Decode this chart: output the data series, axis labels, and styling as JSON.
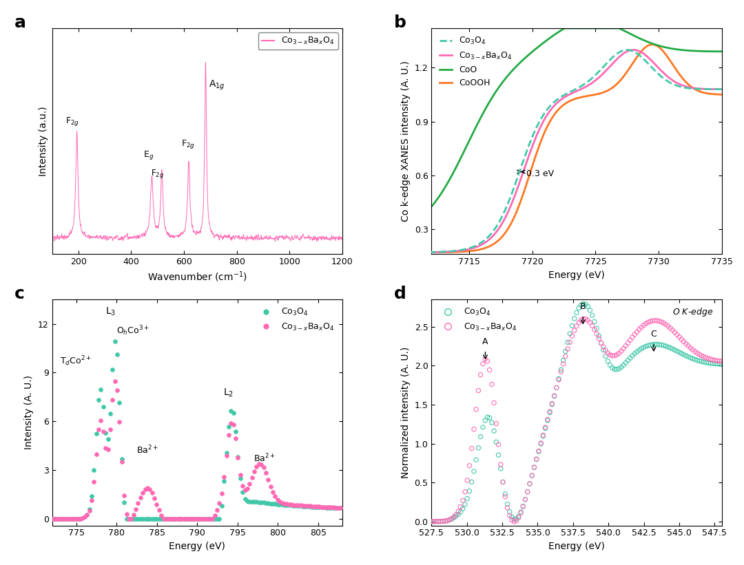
{
  "panel_labels": [
    "a",
    "b",
    "c",
    "d"
  ],
  "panel_label_fontsize": 18,
  "panel_label_fontweight": "bold",
  "panel_a": {
    "xlabel": "Wavenumber (cm$^{-1}$)",
    "ylabel": "Intensity (a.u.)",
    "xlim": [
      100,
      1200
    ],
    "color": "#FF69B4",
    "legend_label": "Co$_{3-x}$Ba$_x$O$_4$"
  },
  "panel_b": {
    "xlabel": "Energy (eV)",
    "ylabel": "Co k-edge XANES intensity (A. U.)",
    "xlim": [
      7712,
      7735
    ],
    "ylim": [
      0.16,
      1.42
    ],
    "yticks": [
      0.3,
      0.6,
      0.9,
      1.2
    ],
    "colors": {
      "Co3O4": "#40C8A8",
      "Co3xBaxO4": "#FF69B4",
      "CoO": "#22AA44",
      "CoOOH": "#FF7722"
    },
    "legend_labels": [
      "Co$_3$O$_4$",
      "Co$_{3-x}$Ba$_x$O$_4$",
      "CoO",
      "CoOOH"
    ],
    "annotation": "0.3 eV"
  },
  "panel_c": {
    "xlabel": "Energy (eV)",
    "ylabel": "Intensity (A. U.)",
    "xlim": [
      772,
      808
    ],
    "ylim": [
      -0.4,
      13.5
    ],
    "yticks": [
      0,
      3,
      6,
      9,
      12
    ],
    "colors": {
      "Co3O4": "#40C8A8",
      "Co3xBaxO4": "#FF69B4"
    },
    "legend_labels": [
      "Co$_3$O$_4$",
      "Co$_{3-x}$Ba$_x$O$_4$"
    ]
  },
  "panel_d": {
    "xlabel": "Energy (eV)",
    "ylabel": "Normalized intensity (A. U.)",
    "xlim": [
      527.5,
      548
    ],
    "ylim": [
      -0.05,
      2.85
    ],
    "yticks": [
      0.0,
      0.5,
      1.0,
      1.5,
      2.0,
      2.5
    ],
    "colors": {
      "Co3O4": "#40C8A8",
      "Co3xBaxO4": "#FF69B4"
    },
    "legend_labels": [
      "Co$_3$O$_4$",
      "Co$_{3-x}$Ba$_x$O$_4$"
    ]
  }
}
